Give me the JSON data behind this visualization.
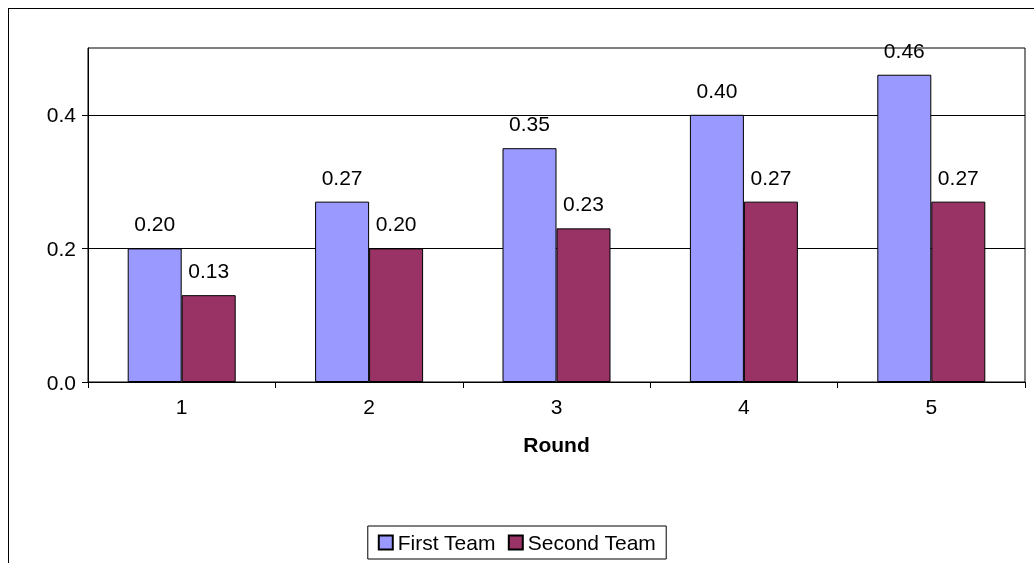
{
  "chart_data": {
    "type": "bar",
    "xlabel": "Round",
    "categories": [
      "1",
      "2",
      "3",
      "4",
      "5"
    ],
    "series": [
      {
        "name": "First Team",
        "color": "#9999ff",
        "values": [
          0.2,
          0.27,
          0.35,
          0.4,
          0.46
        ],
        "value_labels": [
          "0.20",
          "0.27",
          "0.35",
          "0.40",
          "0.46"
        ]
      },
      {
        "name": "Second Team",
        "color": "#993366",
        "values": [
          0.13,
          0.2,
          0.23,
          0.27,
          0.27
        ],
        "value_labels": [
          "0.13",
          "0.20",
          "0.23",
          "0.27",
          "0.27"
        ]
      }
    ],
    "ylim": [
      0,
      0.5
    ],
    "yticks": [
      {
        "value": 0,
        "label": "0.0"
      },
      {
        "value": 0.2,
        "label": "0.2"
      },
      {
        "value": 0.4,
        "label": "0.4"
      }
    ],
    "grid": "y",
    "legend": "bottom"
  }
}
